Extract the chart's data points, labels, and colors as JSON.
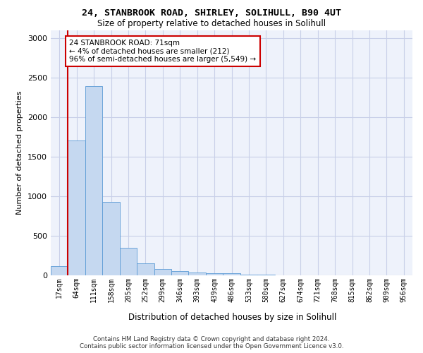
{
  "title1": "24, STANBROOK ROAD, SHIRLEY, SOLIHULL, B90 4UT",
  "title2": "Size of property relative to detached houses in Solihull",
  "xlabel": "Distribution of detached houses by size in Solihull",
  "ylabel": "Number of detached properties",
  "categories": [
    "17sqm",
    "64sqm",
    "111sqm",
    "158sqm",
    "205sqm",
    "252sqm",
    "299sqm",
    "346sqm",
    "393sqm",
    "439sqm",
    "486sqm",
    "533sqm",
    "580sqm",
    "627sqm",
    "674sqm",
    "721sqm",
    "768sqm",
    "815sqm",
    "862sqm",
    "909sqm",
    "956sqm"
  ],
  "values": [
    115,
    1700,
    2390,
    930,
    350,
    155,
    80,
    55,
    40,
    28,
    30,
    5,
    5,
    0,
    0,
    0,
    0,
    0,
    0,
    0,
    0
  ],
  "bar_color": "#c5d8f0",
  "bar_edge_color": "#5b9bd5",
  "vline_color": "#cc0000",
  "annotation_text": "24 STANBROOK ROAD: 71sqm\n← 4% of detached houses are smaller (212)\n96% of semi-detached houses are larger (5,549) →",
  "annotation_box_color": "#ffffff",
  "annotation_box_edge": "#cc0000",
  "ylim": [
    0,
    3100
  ],
  "yticks": [
    0,
    500,
    1000,
    1500,
    2000,
    2500,
    3000
  ],
  "footer": "Contains HM Land Registry data © Crown copyright and database right 2024.\nContains public sector information licensed under the Open Government Licence v3.0.",
  "bg_color": "#ffffff",
  "plot_bg_color": "#eef2fb",
  "grid_color": "#c8cfe8"
}
